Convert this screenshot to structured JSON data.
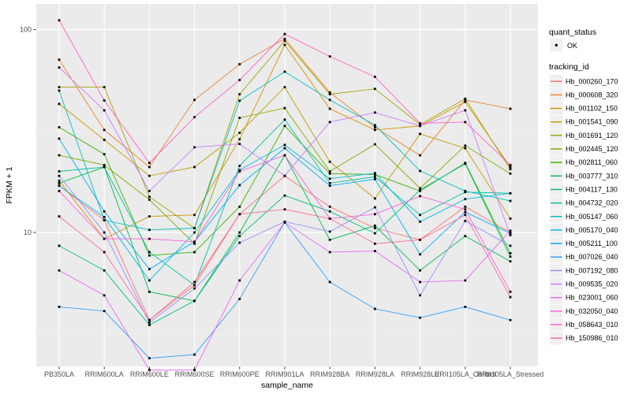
{
  "figure": {
    "x_axis_title": "sample_name",
    "y_axis_title": "FPKM + 1",
    "legend": {
      "quant_status_title": "quant_status",
      "quant_status_items": [
        {
          "label": "OK"
        }
      ],
      "tracking_id_title": "tracking_id"
    },
    "style": {
      "panel_background": "#EBEBEB",
      "grid_major_color": "#FFFFFF",
      "grid_minor_color": "#F7F7F7",
      "tick_text_color": "#4D4D4D",
      "axis_title_color": "#000000",
      "point_color": "#000000",
      "legend_key_background": "#F0F0F0"
    }
  },
  "chart_data": {
    "type": "line",
    "title": "",
    "xlabel": "sample_name",
    "ylabel": "FPKM + 1",
    "y_scale": "log10",
    "y_ticks": [
      10,
      100
    ],
    "y_range_approx": [
      2.2,
      134
    ],
    "grid": true,
    "legend_position": "right",
    "point_shape": "filled-square",
    "categories": [
      "PB350LA",
      "RRIM600LA",
      "RRIM600LE",
      "RRIM600SE",
      "RRIM600PE",
      "RRIM901LA",
      "RRIM928BA",
      "RRIM928LA",
      "RRIM928LE",
      "RRII105LA_Control",
      "RRII105LA_Stressed"
    ],
    "series": [
      {
        "name": "Hb_000260_170",
        "color": "#F8766D",
        "quant_status": "OK",
        "values": [
          17,
          11.5,
          3.7,
          5.5,
          12.3,
          19,
          13.4,
          10.5,
          9.2,
          13.4,
          10
        ]
      },
      {
        "name": "Hb_000608_320",
        "color": "#EA8331",
        "quant_status": "OK",
        "values": [
          71,
          32,
          21,
          45,
          67.5,
          90,
          49,
          33,
          24,
          45,
          40.7
        ]
      },
      {
        "name": "Hb_001102_150",
        "color": "#D89000",
        "quant_status": "OK",
        "values": [
          18,
          9.3,
          12,
          12.2,
          28.8,
          84,
          40.7,
          32,
          33.5,
          44,
          21
        ]
      },
      {
        "name": "Hb_001541_090",
        "color": "#C09B00",
        "quant_status": "OK",
        "values": [
          43,
          28.6,
          19,
          21,
          31,
          52,
          22.3,
          14.7,
          30.6,
          26,
          11.7
        ]
      },
      {
        "name": "Hb_001691_120",
        "color": "#A3A500",
        "quant_status": "OK",
        "values": [
          52,
          52,
          15,
          10.5,
          48,
          88,
          48,
          51,
          34,
          45.6,
          20.5
        ]
      },
      {
        "name": "Hb_002445_120",
        "color": "#7CAE00",
        "quant_status": "OK",
        "values": [
          24,
          21.5,
          14.5,
          8.8,
          36.7,
          41,
          20,
          27.2,
          16.5,
          26.8,
          19.5
        ]
      },
      {
        "name": "Hb_002811_060",
        "color": "#39B600",
        "quant_status": "OK",
        "values": [
          33,
          24.3,
          7.7,
          8,
          13.4,
          33.5,
          19.5,
          19.3,
          16,
          22,
          7.9
        ]
      },
      {
        "name": "Hb_003777_310",
        "color": "#00BB4E",
        "quant_status": "OK",
        "values": [
          17.5,
          21,
          5.1,
          4.6,
          10,
          24,
          9.2,
          10.8,
          6.5,
          9.6,
          7.2
        ]
      },
      {
        "name": "Hb_004117_130",
        "color": "#00BF7D",
        "quant_status": "OK",
        "values": [
          8.6,
          6.5,
          3.5,
          4.6,
          9.6,
          15.2,
          12.7,
          9.9,
          16.2,
          21.8,
          7.6
        ]
      },
      {
        "name": "Hb_004732_020",
        "color": "#00C1A3",
        "quant_status": "OK",
        "values": [
          20,
          21,
          8,
          5.5,
          21.3,
          36,
          17.5,
          18.8,
          12.2,
          15.8,
          15.6
        ]
      },
      {
        "name": "Hb_005147_060",
        "color": "#00BFC4",
        "quant_status": "OK",
        "values": [
          50,
          11.5,
          10.3,
          10.5,
          44.6,
          62,
          45,
          33.8,
          20.1,
          16,
          14.3
        ]
      },
      {
        "name": "Hb_005170_040",
        "color": "#00BAE0",
        "quant_status": "OK",
        "values": [
          17,
          11.9,
          5.8,
          10,
          20.3,
          27,
          18.4,
          19.6,
          11.3,
          14.6,
          15.6
        ]
      },
      {
        "name": "Hb_005211_100",
        "color": "#00B0F6",
        "quant_status": "OK",
        "values": [
          29,
          12.7,
          6.6,
          9,
          17.1,
          26,
          17,
          18.3,
          7.8,
          12.6,
          9.9
        ]
      },
      {
        "name": "Hb_007026_040",
        "color": "#35A2FF",
        "quant_status": "OK",
        "values": [
          4.3,
          4.1,
          2.4,
          2.5,
          4.7,
          11.2,
          5.7,
          4.2,
          3.8,
          4.3,
          3.7
        ]
      },
      {
        "name": "Hb_007192_080",
        "color": "#9590FF",
        "quant_status": "OK",
        "values": [
          19,
          10,
          3.6,
          5.3,
          8.9,
          11.3,
          10.1,
          13.3,
          4.9,
          11.4,
          8.6
        ]
      },
      {
        "name": "Hb_009535_020",
        "color": "#C77CFF",
        "quant_status": "OK",
        "values": [
          65,
          40,
          16,
          26.3,
          27.3,
          19,
          35,
          39,
          33.5,
          40,
          9.7
        ]
      },
      {
        "name": "Hb_023001_060",
        "color": "#E76BF3",
        "quant_status": "OK",
        "values": [
          6.5,
          4.9,
          2.1,
          2.1,
          5.8,
          11.2,
          8,
          8.1,
          5.7,
          5.8,
          10.2
        ]
      },
      {
        "name": "Hb_032050_040",
        "color": "#FA62DB",
        "quant_status": "OK",
        "values": [
          16,
          9.3,
          9.3,
          9,
          20,
          24,
          11.7,
          12.3,
          15.1,
          13,
          5.1
        ]
      },
      {
        "name": "Hb_058643_010",
        "color": "#FF61CC",
        "quant_status": "OK",
        "values": [
          111,
          44.7,
          22,
          37,
          56.4,
          95,
          73.7,
          58.5,
          34.5,
          35,
          21.5
        ]
      },
      {
        "name": "Hb_150986_010",
        "color": "#FF6A98",
        "quant_status": "OK",
        "values": [
          12,
          8,
          3.7,
          5.7,
          12.3,
          13,
          11.7,
          8.8,
          9.2,
          12.2,
          4.8
        ]
      }
    ]
  }
}
